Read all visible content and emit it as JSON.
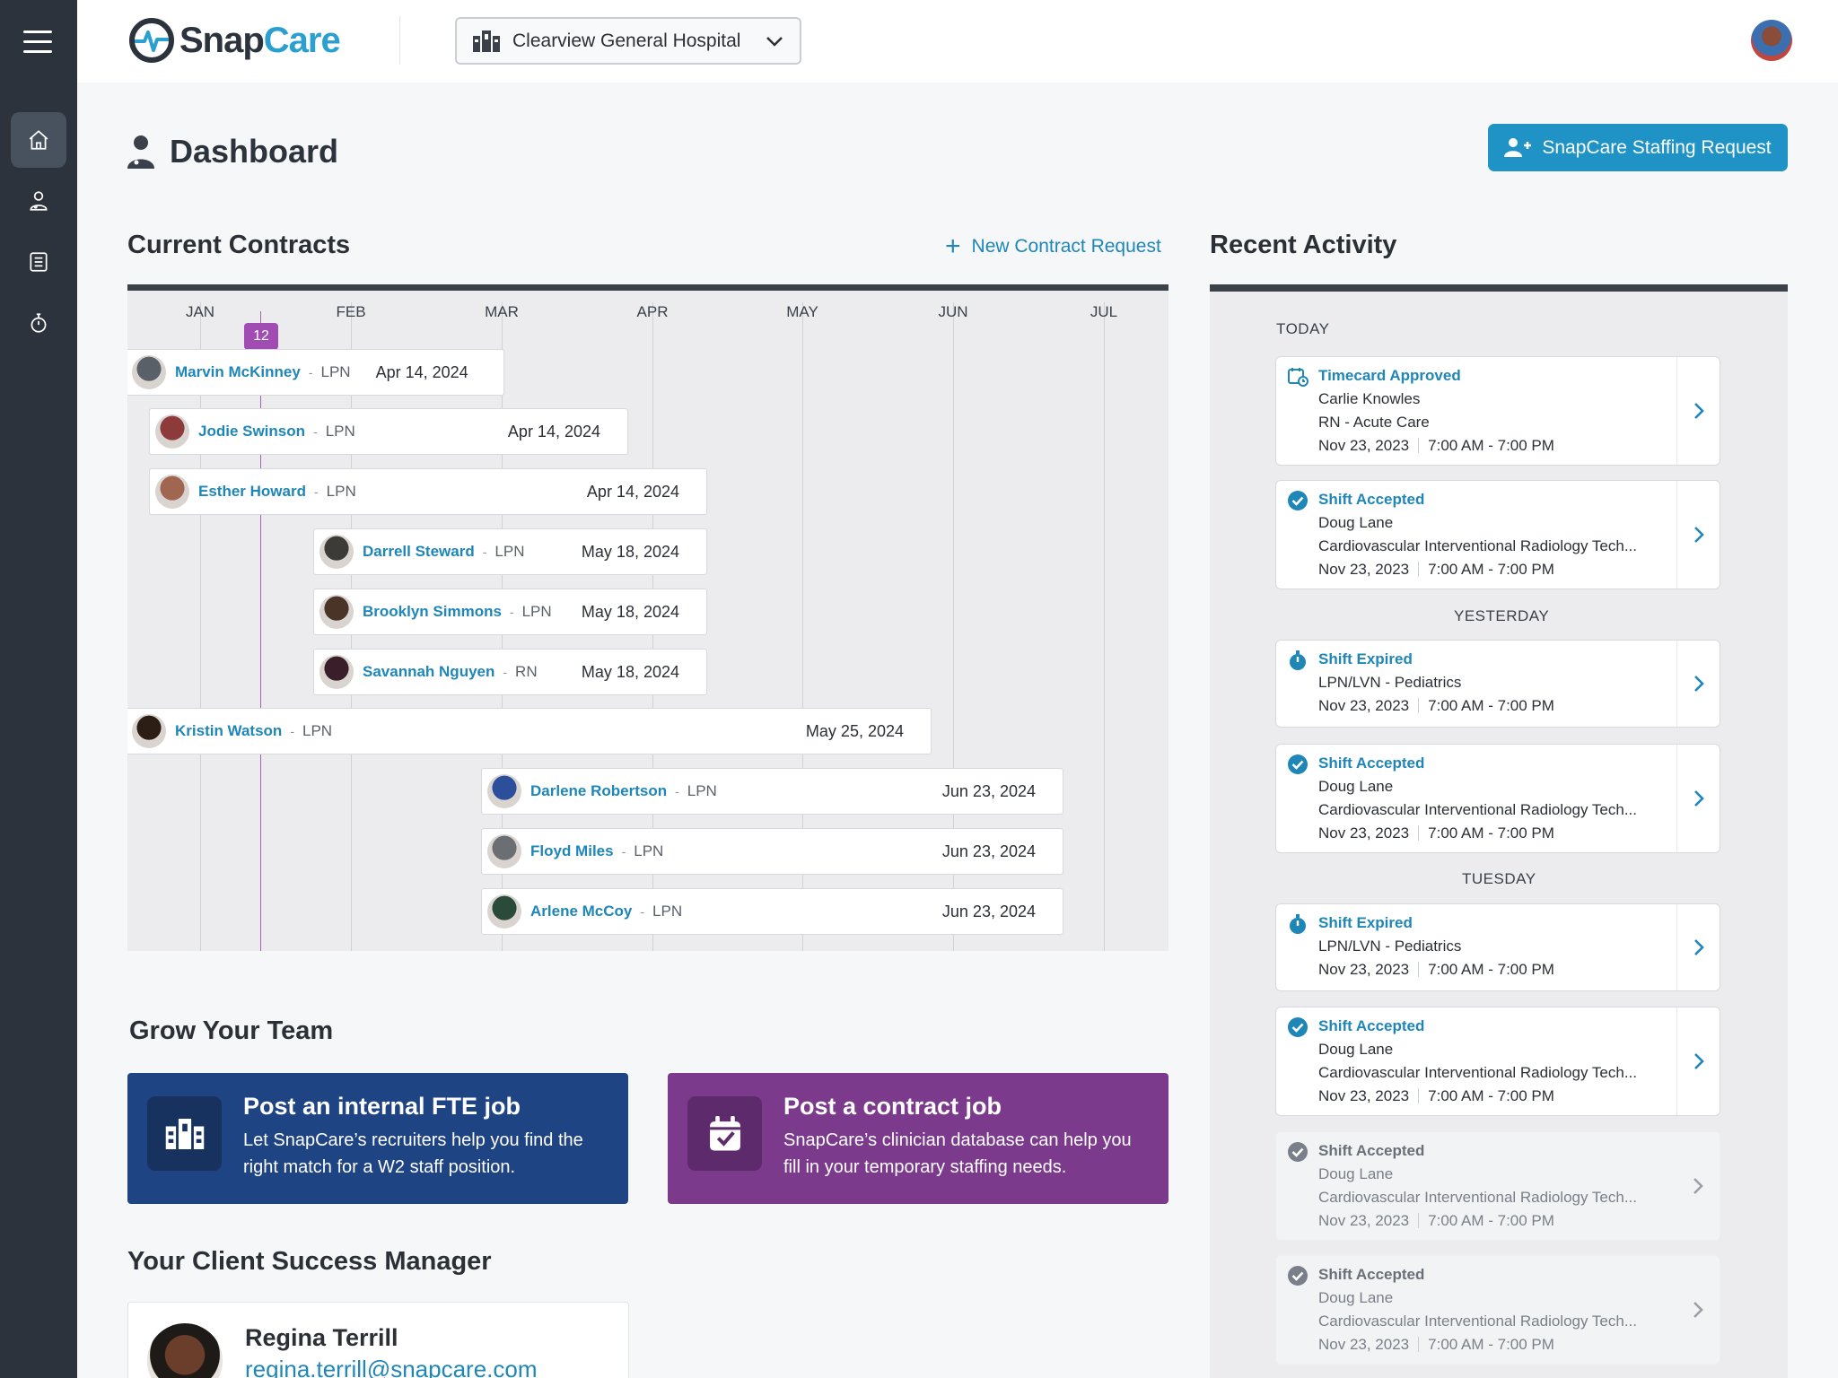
{
  "app": {
    "logo_snap": "Snap",
    "logo_care": "Care",
    "hospital": "Clearview General Hospital"
  },
  "sidebar": {
    "items": [
      {
        "icon": "home-icon",
        "active": true
      },
      {
        "icon": "clinician-icon"
      },
      {
        "icon": "checklist-icon"
      },
      {
        "icon": "stopwatch-icon"
      }
    ]
  },
  "page": {
    "title": "Dashboard",
    "staffing_button": "SnapCare Staffing Request"
  },
  "contracts": {
    "heading": "Current Contracts",
    "new_request": "New Contract Request",
    "months": [
      "JAN",
      "FEB",
      "MAR",
      "APR",
      "MAY",
      "JUN",
      "JUL"
    ],
    "today_badge": "12",
    "rows": [
      {
        "name": "Marvin McKinney",
        "role": "LPN",
        "end": "Apr 14, 2024"
      },
      {
        "name": "Jodie Swinson",
        "role": "LPN",
        "end": "Apr 14, 2024"
      },
      {
        "name": "Esther Howard",
        "role": "LPN",
        "end": "Apr 14, 2024"
      },
      {
        "name": "Darrell Steward",
        "role": "LPN",
        "end": "May 18, 2024"
      },
      {
        "name": "Brooklyn Simmons",
        "role": "LPN",
        "end": "May 18, 2024"
      },
      {
        "name": "Savannah Nguyen",
        "role": "RN",
        "end": "May 18, 2024"
      },
      {
        "name": "Kristin Watson",
        "role": "LPN",
        "end": "May 25, 2024"
      },
      {
        "name": "Darlene Robertson",
        "role": "LPN",
        "end": "Jun 23, 2024"
      },
      {
        "name": "Floyd Miles",
        "role": "LPN",
        "end": "Jun 23, 2024"
      },
      {
        "name": "Arlene McCoy",
        "role": "LPN",
        "end": "Jun 23, 2024"
      }
    ]
  },
  "grow": {
    "heading": "Grow Your Team",
    "fte": {
      "title": "Post an internal FTE job",
      "desc": "Let SnapCare’s recruiters help you find the right match for a W2 staff position.",
      "color": "#1f4484"
    },
    "contract": {
      "title": "Post a contract job",
      "desc": "SnapCare’s clinician database can help you fill in your temporary staffing needs.",
      "color": "#7c3a8c"
    }
  },
  "csm": {
    "heading": "Your Client Success Manager",
    "name": "Regina Terrill",
    "email": "regina.terrill@snapcare.com"
  },
  "activity": {
    "heading": "Recent Activity",
    "days": [
      "TODAY",
      "YESTERDAY",
      "TUESDAY"
    ],
    "items": [
      {
        "icon": "calendar-clock-icon",
        "title": "Timecard Approved",
        "lines": [
          "Carlie Knowles",
          "RN - Acute Care"
        ],
        "date": "Nov 23, 2023",
        "time": "7:00 AM - 7:00 PM"
      },
      {
        "icon": "check-circle-icon",
        "title": "Shift Accepted",
        "lines": [
          "Doug Lane",
          "Cardiovascular Interventional Radiology Tech..."
        ],
        "date": "Nov 23, 2023",
        "time": "7:00 AM - 7:00 PM"
      },
      {
        "icon": "stopwatch-icon",
        "title": "Shift Expired",
        "lines": [
          "LPN/LVN - Pediatrics"
        ],
        "date": "Nov 23, 2023",
        "time": "7:00 AM - 7:00 PM"
      },
      {
        "icon": "check-circle-icon",
        "title": "Shift Accepted",
        "lines": [
          "Doug Lane",
          "Cardiovascular Interventional Radiology Tech..."
        ],
        "date": "Nov 23, 2023",
        "time": "7:00 AM - 7:00 PM"
      },
      {
        "icon": "stopwatch-icon",
        "title": "Shift Expired",
        "lines": [
          "LPN/LVN - Pediatrics"
        ],
        "date": "Nov 23, 2023",
        "time": "7:00 AM - 7:00 PM"
      },
      {
        "icon": "check-circle-icon",
        "title": "Shift Accepted",
        "lines": [
          "Doug Lane",
          "Cardiovascular Interventional Radiology Tech..."
        ],
        "date": "Nov 23, 2023",
        "time": "7:00 AM - 7:00 PM"
      },
      {
        "icon": "check-circle-icon",
        "title": "Shift Accepted",
        "lines": [
          "Doug Lane",
          "Cardiovascular Interventional Radiology Tech..."
        ],
        "date": "Nov 23, 2023",
        "time": "7:00 AM - 7:00 PM"
      },
      {
        "icon": "check-circle-icon",
        "title": "Shift Accepted",
        "lines": [
          "Doug Lane",
          "Cardiovascular Interventional Radiology Tech..."
        ],
        "date": "Nov 23, 2023",
        "time": "7:00 AM - 7:00 PM"
      }
    ]
  }
}
